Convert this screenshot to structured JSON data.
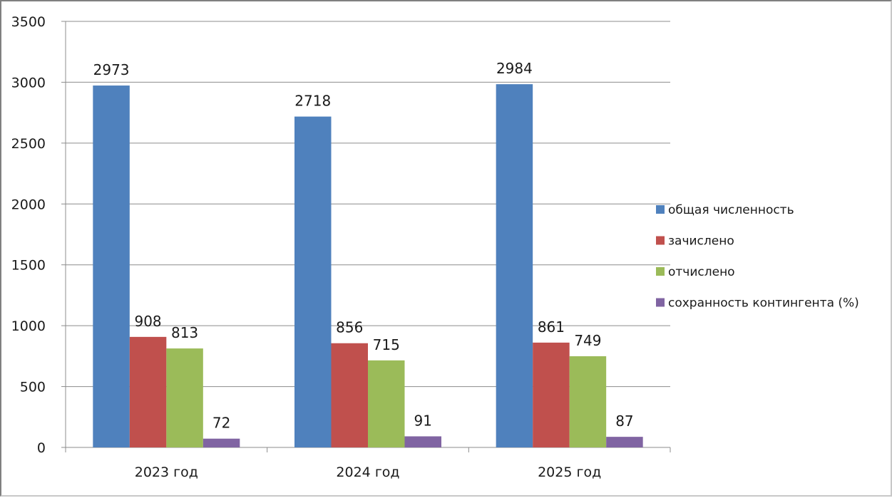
{
  "chart_data": {
    "type": "bar",
    "categories": [
      "2023 год",
      "2024 год",
      "2025 год"
    ],
    "series": [
      {
        "name": "общая численность",
        "values": [
          2973,
          2718,
          2984
        ],
        "color": "#4f81bd"
      },
      {
        "name": "зачислено",
        "values": [
          908,
          856,
          861
        ],
        "color": "#c0504d"
      },
      {
        "name": "отчислено",
        "values": [
          813,
          715,
          749
        ],
        "color": "#9bbb59"
      },
      {
        "name": "сохранность контингента (%)",
        "values": [
          72,
          91,
          87
        ],
        "color": "#8064a2"
      }
    ],
    "y_ticks": [
      "0",
      "500",
      "1000",
      "1500",
      "2000",
      "2500",
      "3000",
      "3500"
    ],
    "ylim": [
      0,
      3500
    ],
    "grid": true,
    "legend_position": "right",
    "data_labels": true
  }
}
